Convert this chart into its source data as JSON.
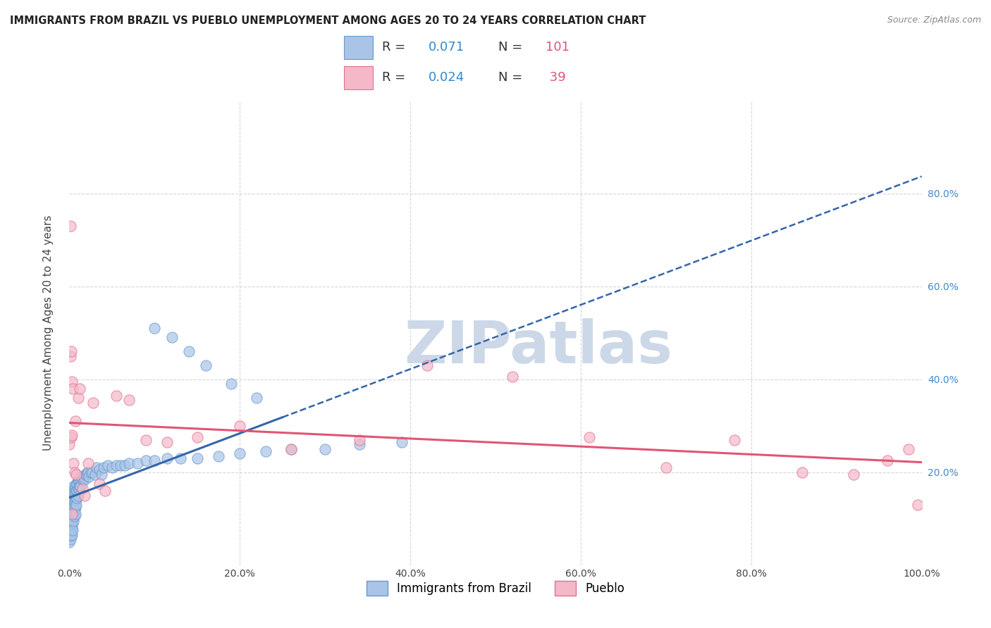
{
  "title": "IMMIGRANTS FROM BRAZIL VS PUEBLO UNEMPLOYMENT AMONG AGES 20 TO 24 YEARS CORRELATION CHART",
  "source": "Source: ZipAtlas.com",
  "ylabel": "Unemployment Among Ages 20 to 24 years",
  "xlim": [
    0,
    1.0
  ],
  "ylim": [
    0,
    1.0
  ],
  "background_color": "#ffffff",
  "grid_color": "#cccccc",
  "series1_color": "#aac4e8",
  "series1_edge_color": "#6699cc",
  "series2_color": "#f4b8c8",
  "series2_edge_color": "#e07090",
  "trendline1_color": "#3366aa",
  "trendline2_color": "#e05575",
  "watermark_text": "ZIPatlas",
  "watermark_color": "#ccd8e8",
  "brazil_x": [
    0.0,
    0.0,
    0.001,
    0.001,
    0.001,
    0.001,
    0.001,
    0.002,
    0.002,
    0.002,
    0.002,
    0.002,
    0.002,
    0.003,
    0.003,
    0.003,
    0.003,
    0.003,
    0.003,
    0.003,
    0.004,
    0.004,
    0.004,
    0.004,
    0.004,
    0.004,
    0.004,
    0.005,
    0.005,
    0.005,
    0.005,
    0.005,
    0.005,
    0.006,
    0.006,
    0.006,
    0.006,
    0.006,
    0.007,
    0.007,
    0.007,
    0.007,
    0.007,
    0.008,
    0.008,
    0.008,
    0.008,
    0.009,
    0.009,
    0.009,
    0.01,
    0.01,
    0.01,
    0.011,
    0.011,
    0.012,
    0.012,
    0.013,
    0.013,
    0.014,
    0.015,
    0.016,
    0.017,
    0.018,
    0.019,
    0.02,
    0.021,
    0.022,
    0.023,
    0.025,
    0.027,
    0.03,
    0.032,
    0.035,
    0.038,
    0.04,
    0.045,
    0.05,
    0.055,
    0.06,
    0.065,
    0.07,
    0.08,
    0.09,
    0.1,
    0.115,
    0.13,
    0.15,
    0.175,
    0.2,
    0.23,
    0.26,
    0.3,
    0.34,
    0.39,
    0.1,
    0.12,
    0.14,
    0.16,
    0.19,
    0.22
  ],
  "brazil_y": [
    0.06,
    0.05,
    0.095,
    0.085,
    0.075,
    0.065,
    0.055,
    0.14,
    0.12,
    0.105,
    0.09,
    0.075,
    0.065,
    0.155,
    0.14,
    0.125,
    0.11,
    0.095,
    0.08,
    0.065,
    0.16,
    0.148,
    0.135,
    0.12,
    0.105,
    0.09,
    0.075,
    0.17,
    0.155,
    0.14,
    0.125,
    0.11,
    0.095,
    0.165,
    0.15,
    0.135,
    0.12,
    0.105,
    0.17,
    0.155,
    0.14,
    0.125,
    0.11,
    0.175,
    0.16,
    0.145,
    0.13,
    0.175,
    0.16,
    0.145,
    0.18,
    0.165,
    0.15,
    0.18,
    0.165,
    0.185,
    0.17,
    0.185,
    0.17,
    0.19,
    0.185,
    0.185,
    0.19,
    0.185,
    0.195,
    0.195,
    0.2,
    0.2,
    0.19,
    0.2,
    0.2,
    0.195,
    0.21,
    0.205,
    0.195,
    0.21,
    0.215,
    0.21,
    0.215,
    0.215,
    0.215,
    0.22,
    0.22,
    0.225,
    0.225,
    0.23,
    0.23,
    0.23,
    0.235,
    0.24,
    0.245,
    0.25,
    0.25,
    0.26,
    0.265,
    0.51,
    0.49,
    0.46,
    0.43,
    0.39,
    0.36
  ],
  "pueblo_x": [
    0.0,
    0.001,
    0.001,
    0.002,
    0.002,
    0.003,
    0.003,
    0.004,
    0.005,
    0.006,
    0.008,
    0.01,
    0.012,
    0.015,
    0.018,
    0.022,
    0.028,
    0.035,
    0.042,
    0.055,
    0.07,
    0.09,
    0.115,
    0.15,
    0.2,
    0.26,
    0.34,
    0.42,
    0.52,
    0.61,
    0.7,
    0.78,
    0.86,
    0.92,
    0.96,
    0.985,
    0.995,
    0.003,
    0.007
  ],
  "pueblo_y": [
    0.26,
    0.73,
    0.45,
    0.46,
    0.275,
    0.28,
    0.395,
    0.38,
    0.22,
    0.2,
    0.195,
    0.36,
    0.38,
    0.165,
    0.15,
    0.22,
    0.35,
    0.175,
    0.16,
    0.365,
    0.355,
    0.27,
    0.265,
    0.275,
    0.3,
    0.25,
    0.27,
    0.43,
    0.405,
    0.275,
    0.21,
    0.27,
    0.2,
    0.195,
    0.225,
    0.25,
    0.13,
    0.11,
    0.31
  ]
}
